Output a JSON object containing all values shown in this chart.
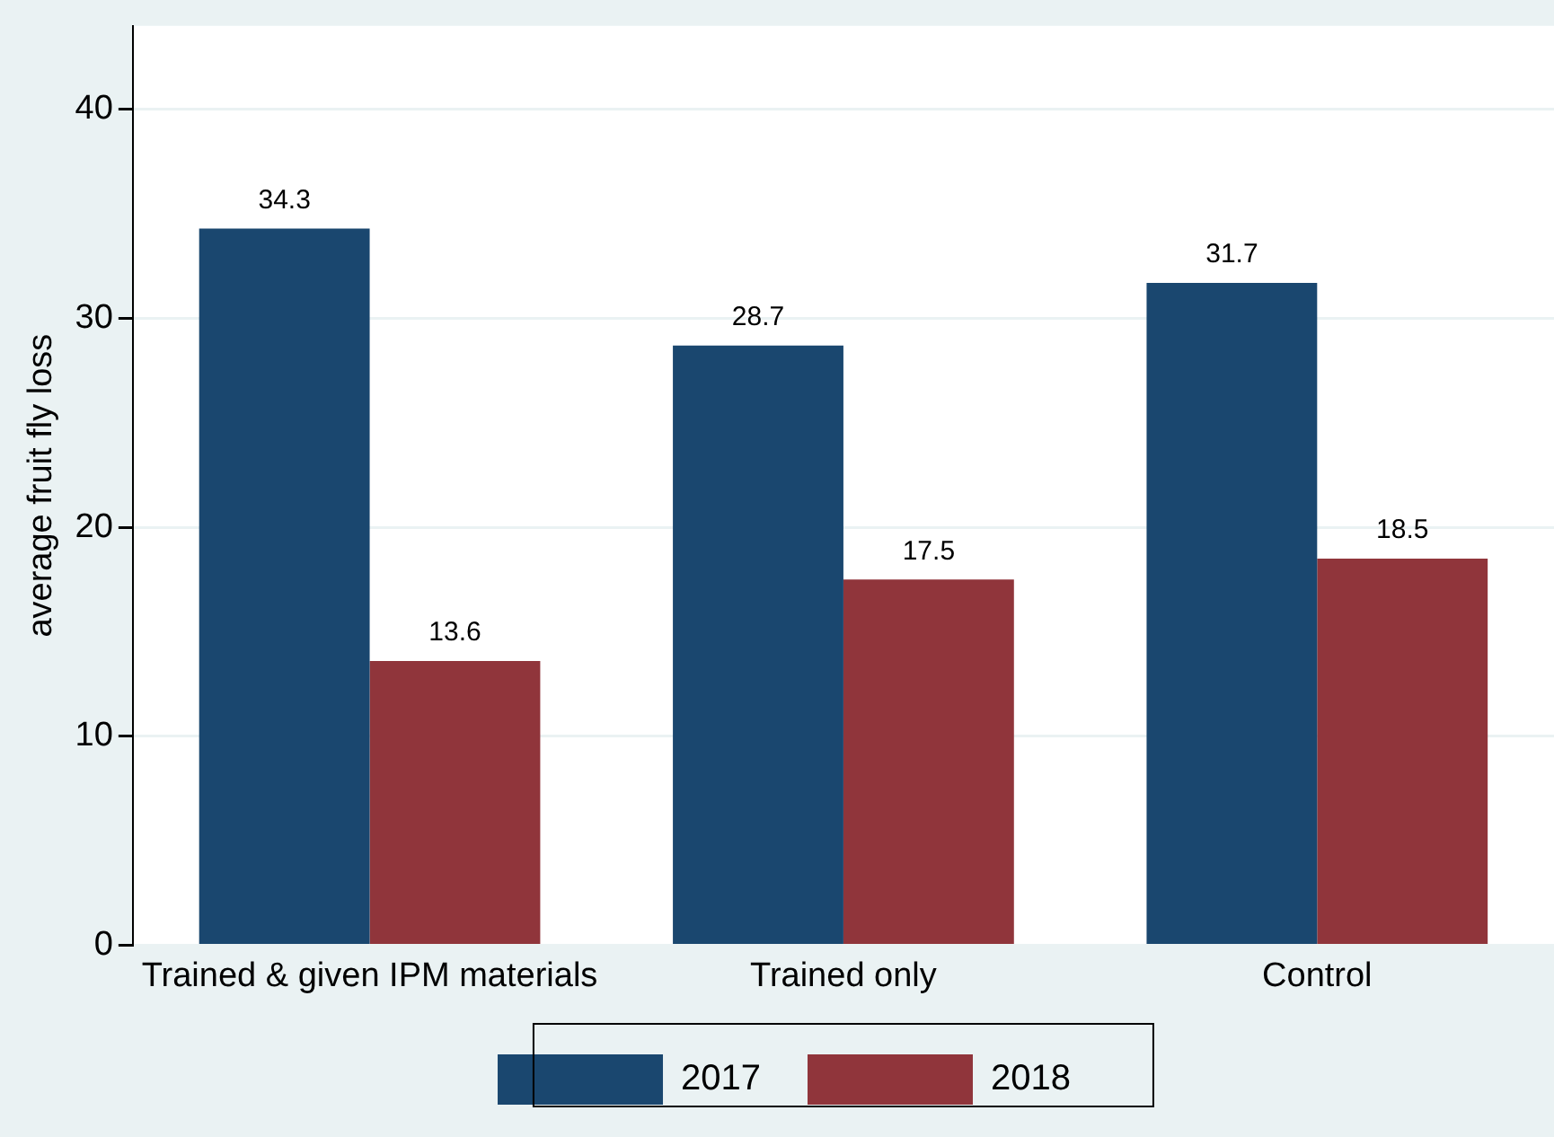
{
  "chart_data": {
    "type": "bar",
    "ylabel": "average fruit fly loss",
    "categories": [
      "Trained & given IPM materials",
      "Trained only",
      "Control"
    ],
    "series": [
      {
        "name": "2017",
        "color": "#1a476f",
        "values": [
          34.3,
          28.7,
          31.7
        ]
      },
      {
        "name": "2018",
        "color": "#90353b",
        "values": [
          13.6,
          17.5,
          18.5
        ]
      }
    ],
    "ylim": [
      0,
      44
    ],
    "yticks": [
      0,
      10,
      20,
      30,
      40
    ],
    "grid": "y",
    "legend": "bottom",
    "data_labels": true
  }
}
